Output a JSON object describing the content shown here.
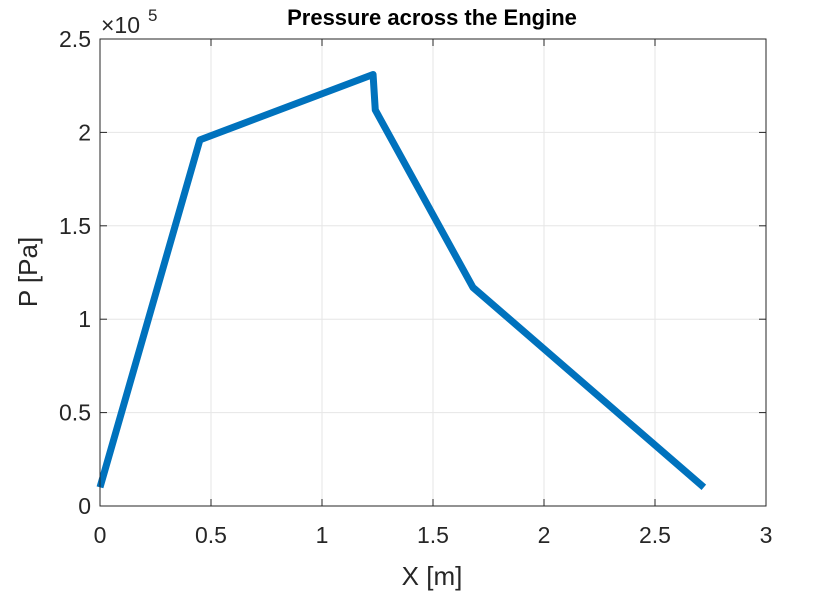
{
  "chart_data": {
    "type": "line",
    "title": "Pressure across the Engine",
    "xlabel": "X [m]",
    "ylabel": "P [Pa]",
    "y_exponent_base": "×10",
    "y_exponent_power": "5",
    "xlim": [
      0,
      3
    ],
    "ylim": [
      0,
      2.5
    ],
    "xticks": [
      0,
      0.5,
      1,
      1.5,
      2,
      2.5,
      3
    ],
    "xtick_labels": [
      "0",
      "0.5",
      "1",
      "1.5",
      "2",
      "2.5",
      "3"
    ],
    "yticks": [
      0,
      0.5,
      1,
      1.5,
      2,
      2.5
    ],
    "ytick_labels": [
      "0",
      "0.5",
      "1",
      "1.5",
      "2",
      "2.5"
    ],
    "grid": true,
    "series": [
      {
        "color": "#0072BD",
        "x": [
          0,
          0.45,
          1.23,
          1.24,
          1.68,
          2.72
        ],
        "y": [
          0.1,
          1.96,
          2.31,
          2.12,
          1.17,
          0.1
        ]
      }
    ]
  }
}
